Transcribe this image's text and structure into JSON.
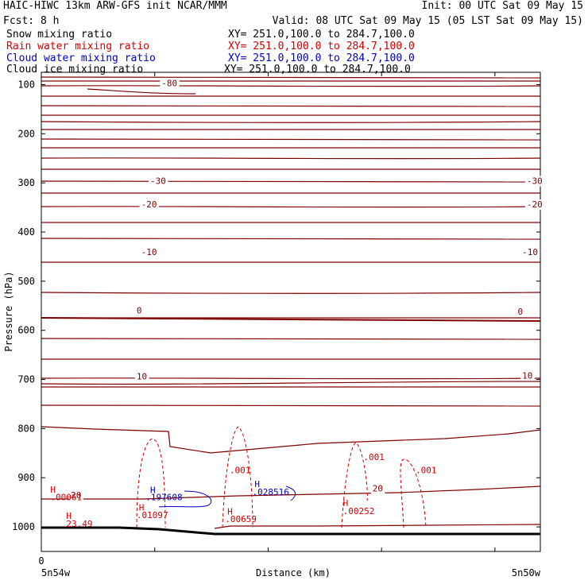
{
  "header": {
    "line1_left": "HAIC-HIWC 13km ARW-GFS init   NCAR/MMM",
    "line1_right": "Init: 00 UTC Sat 09 May 15",
    "line2_left": "Fcst:    8 h",
    "line2_right": "Valid: 08 UTC Sat 09 May 15 (05 LST Sat 09 May 15)"
  },
  "fields": [
    {
      "name": "Snow mixing ratio",
      "xy": "XY= 251.0,100.0 to 284.7,100.0",
      "color": "#000000"
    },
    {
      "name": "Rain water mixing ratio",
      "xy": "XY= 251.0,100.0 to 284.7,100.0",
      "color": "#d40000"
    },
    {
      "name": "Cloud water mixing ratio",
      "xy": "XY= 251.0,100.0 to 284.7,100.0",
      "color": "#0000c8"
    },
    {
      "name": "Cloud ice mixing ratio",
      "xy": "XY= 251.0,100.0 to 284.7,100.0",
      "color": "#000000"
    }
  ],
  "colors": {
    "temperature": "#800000",
    "rain": "#d40000",
    "cloud_water": "#0000c8",
    "terrain": "#000000"
  },
  "chart_data": {
    "type": "line",
    "xlabel": "Distance (km)",
    "ylabel": "Pressure (hPa)",
    "x_ticks": [
      0,
      50,
      100,
      150,
      200
    ],
    "x_tick_labels": [
      "0"
    ],
    "x_end_labels": [
      "5n54w",
      "5n50w"
    ],
    "y_ticks": [
      100,
      200,
      300,
      400,
      500,
      600,
      700,
      800,
      900,
      1000
    ],
    "y_tick_labels": [
      "100",
      "200",
      "300",
      "400",
      "500",
      "600",
      "700",
      "800",
      "900",
      "1000"
    ],
    "ylim": [
      1050,
      75
    ],
    "xlim": [
      0,
      220
    ],
    "isotherm_labels": [
      {
        "text": "-80",
        "x": 53,
        "p": 103
      },
      {
        "text": "-30",
        "x": 48,
        "p": 302
      },
      {
        "text": "-30",
        "x": 214,
        "p": 302
      },
      {
        "text": "-20",
        "x": 44,
        "p": 350
      },
      {
        "text": "-20",
        "x": 214,
        "p": 350
      },
      {
        "text": "-10",
        "x": 44,
        "p": 447
      },
      {
        "text": "-10",
        "x": 212,
        "p": 447
      },
      {
        "text": "0",
        "x": 42,
        "p": 566
      },
      {
        "text": "0",
        "x": 210,
        "p": 568
      },
      {
        "text": "10",
        "x": 42,
        "p": 700
      },
      {
        "text": "10",
        "x": 212,
        "p": 698
      },
      {
        "text": "20",
        "x": 13,
        "p": 942
      },
      {
        "text": "20",
        "x": 146,
        "p": 928
      }
    ],
    "rain_labels": [
      {
        "text": ".001",
        "x": 83,
        "p": 891
      },
      {
        "text": ".001",
        "x": 142,
        "p": 864
      },
      {
        "text": ".001",
        "x": 165,
        "p": 891
      },
      {
        "text": "H",
        "x": 4,
        "p": 930
      },
      {
        "text": ".00061",
        "x": 4,
        "p": 946
      },
      {
        "text": "H",
        "x": 11,
        "p": 984
      },
      {
        "text": "23.49",
        "x": 11,
        "p": 1000
      },
      {
        "text": "H",
        "x": 43,
        "p": 967
      },
      {
        "text": ".01097",
        "x": 42,
        "p": 982
      },
      {
        "text": "H",
        "x": 82,
        "p": 975
      },
      {
        "text": ".00659",
        "x": 81,
        "p": 990
      },
      {
        "text": "H",
        "x": 133,
        "p": 958
      },
      {
        "text": ".00252",
        "x": 133,
        "p": 974
      }
    ],
    "cloud_water_labels": [
      {
        "text": "H",
        "x": 48,
        "p": 931
      },
      {
        "text": ".197608",
        "x": 46,
        "p": 946
      },
      {
        "text": "H",
        "x": 94,
        "p": 919
      },
      {
        "text": ".028516",
        "x": 93,
        "p": 935
      }
    ]
  }
}
